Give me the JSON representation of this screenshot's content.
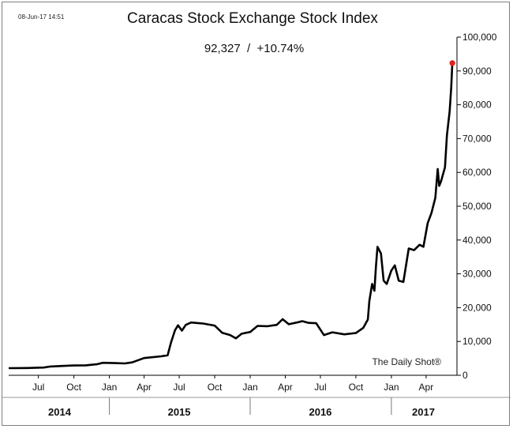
{
  "timestamp": "08-Jun-17 14:51",
  "watermark": "The Daily Shot®",
  "chart_data": {
    "type": "line",
    "title": "Caracas Stock Exchange Stock Index",
    "subtitle": "92,327  /  +10.74%",
    "xlabel": "",
    "ylabel": "",
    "ylim": [
      0,
      100000
    ],
    "y_ticks": [
      0,
      10000,
      20000,
      30000,
      40000,
      50000,
      60000,
      70000,
      80000,
      90000,
      100000
    ],
    "y_tick_labels": [
      "0",
      "10,000",
      "20,000",
      "30,000",
      "40,000",
      "50,000",
      "60,000",
      "70,000",
      "80,000",
      "90,000",
      "100,000"
    ],
    "xlim": [
      "2014-04-15",
      "2017-06-20"
    ],
    "x_ticks": [
      {
        "date": "2014-07-01",
        "label": "Jul"
      },
      {
        "date": "2014-10-01",
        "label": "Oct"
      },
      {
        "date": "2015-01-01",
        "label": "Jan"
      },
      {
        "date": "2015-04-01",
        "label": "Apr"
      },
      {
        "date": "2015-07-01",
        "label": "Jul"
      },
      {
        "date": "2015-10-01",
        "label": "Oct"
      },
      {
        "date": "2016-01-01",
        "label": "Jan"
      },
      {
        "date": "2016-04-01",
        "label": "Apr"
      },
      {
        "date": "2016-07-01",
        "label": "Jul"
      },
      {
        "date": "2016-10-01",
        "label": "Oct"
      },
      {
        "date": "2017-01-01",
        "label": "Jan"
      },
      {
        "date": "2017-04-01",
        "label": "Apr"
      }
    ],
    "years": [
      {
        "label": "2014",
        "center": "2014-08-25"
      },
      {
        "label": "2015",
        "center": "2015-07-01"
      },
      {
        "label": "2016",
        "center": "2016-07-01"
      },
      {
        "label": "2017",
        "center": "2017-03-25"
      }
    ],
    "year_separators": [
      "2015-01-01",
      "2016-01-01",
      "2017-01-01"
    ],
    "grid": false,
    "legend": "none",
    "line_color": "#000000",
    "marker_color": "#e0201b",
    "series": [
      {
        "values": [
          [
            "2014-04-15",
            2100
          ],
          [
            "2014-06-01",
            2150
          ],
          [
            "2014-07-15",
            2300
          ],
          [
            "2014-08-01",
            2600
          ],
          [
            "2014-09-01",
            2750
          ],
          [
            "2014-10-01",
            2900
          ],
          [
            "2014-11-01",
            2950
          ],
          [
            "2014-12-01",
            3300
          ],
          [
            "2014-12-15",
            3700
          ],
          [
            "2015-01-15",
            3600
          ],
          [
            "2015-02-10",
            3500
          ],
          [
            "2015-03-01",
            3800
          ],
          [
            "2015-04-01",
            5100
          ],
          [
            "2015-05-15",
            5600
          ],
          [
            "2015-06-01",
            5900
          ],
          [
            "2015-06-10",
            9800
          ],
          [
            "2015-06-20",
            13300
          ],
          [
            "2015-06-28",
            14800
          ],
          [
            "2015-07-08",
            13200
          ],
          [
            "2015-07-18",
            14900
          ],
          [
            "2015-08-01",
            15600
          ],
          [
            "2015-09-01",
            15300
          ],
          [
            "2015-10-01",
            14700
          ],
          [
            "2015-10-20",
            12600
          ],
          [
            "2015-11-10",
            11900
          ],
          [
            "2015-11-25",
            10900
          ],
          [
            "2015-12-10",
            12300
          ],
          [
            "2016-01-01",
            12800
          ],
          [
            "2016-01-20",
            14600
          ],
          [
            "2016-02-15",
            14500
          ],
          [
            "2016-03-10",
            14900
          ],
          [
            "2016-03-25",
            16600
          ],
          [
            "2016-04-10",
            15100
          ],
          [
            "2016-05-01",
            15600
          ],
          [
            "2016-05-15",
            16000
          ],
          [
            "2016-06-01",
            15500
          ],
          [
            "2016-06-20",
            15400
          ],
          [
            "2016-07-10",
            11900
          ],
          [
            "2016-08-01",
            12700
          ],
          [
            "2016-09-01",
            12100
          ],
          [
            "2016-10-01",
            12500
          ],
          [
            "2016-10-20",
            14000
          ],
          [
            "2016-11-01",
            16500
          ],
          [
            "2016-11-05",
            22000
          ],
          [
            "2016-11-12",
            27000
          ],
          [
            "2016-11-18",
            25000
          ],
          [
            "2016-11-22",
            32000
          ],
          [
            "2016-11-26",
            38000
          ],
          [
            "2016-12-05",
            36000
          ],
          [
            "2016-12-12",
            28000
          ],
          [
            "2016-12-20",
            27000
          ],
          [
            "2017-01-01",
            31000
          ],
          [
            "2017-01-10",
            32500
          ],
          [
            "2017-01-20",
            28000
          ],
          [
            "2017-02-01",
            27600
          ],
          [
            "2017-02-15",
            37500
          ],
          [
            "2017-03-01",
            37000
          ],
          [
            "2017-03-15",
            38600
          ],
          [
            "2017-03-25",
            38000
          ],
          [
            "2017-04-05",
            45000
          ],
          [
            "2017-04-15",
            48000
          ],
          [
            "2017-04-25",
            52500
          ],
          [
            "2017-05-01",
            61000
          ],
          [
            "2017-05-05",
            56000
          ],
          [
            "2017-05-10",
            57500
          ],
          [
            "2017-05-20",
            61500
          ],
          [
            "2017-05-25",
            71000
          ],
          [
            "2017-06-01",
            78000
          ],
          [
            "2017-06-05",
            85000
          ],
          [
            "2017-06-08",
            92327
          ]
        ]
      }
    ],
    "last_point": [
      "2017-06-08",
      92327
    ]
  }
}
